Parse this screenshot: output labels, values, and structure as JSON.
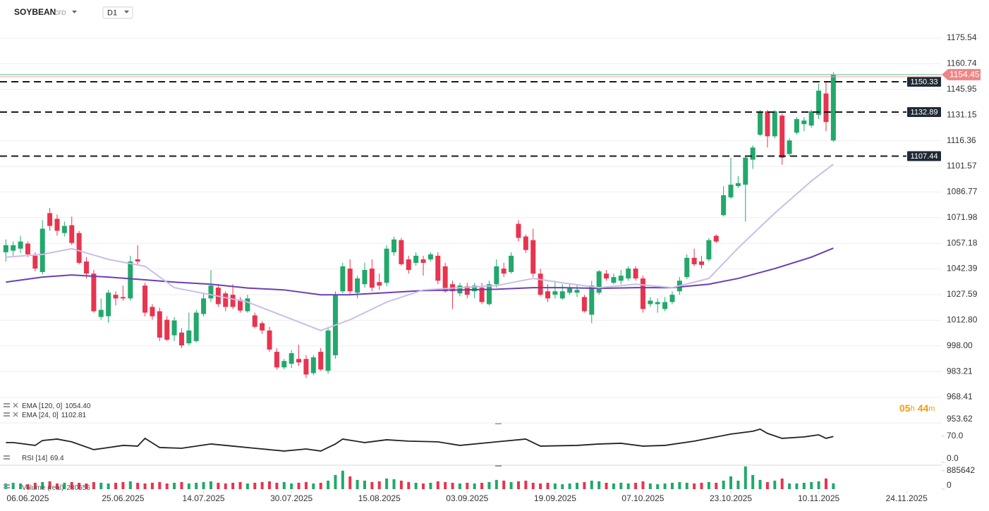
{
  "header": {
    "symbol": "SOYBEAN",
    "instrument_type": "CFD",
    "timeframe": "D1"
  },
  "countdown": {
    "hours": "05",
    "hours_unit": "h",
    "minutes": "44",
    "minutes_unit": "m"
  },
  "chart_data": [
    {
      "type": "candlestick",
      "up_color": "#22a86b",
      "down_color": "#e8344e",
      "grid": true,
      "xlim": [
        -0.8,
        127.8
      ],
      "xticks": [
        {
          "value": 3,
          "label": "06.06.2025"
        },
        {
          "value": 16,
          "label": "25.06.2025"
        },
        {
          "value": 27,
          "label": "14.07.2025"
        },
        {
          "value": 39,
          "label": "30.07.2025"
        },
        {
          "value": 51,
          "label": "15.08.2025"
        },
        {
          "value": 63,
          "label": "03.09.2025"
        },
        {
          "value": 75,
          "label": "19.09.2025"
        },
        {
          "value": 87,
          "label": "07.10.2025"
        },
        {
          "value": 99,
          "label": "23.10.2025"
        },
        {
          "value": 111,
          "label": "10.11.2025"
        },
        {
          "value": 123,
          "label": "24.11.2025"
        }
      ],
      "ylim": [
        953.6,
        1197.5
      ],
      "yticks": [
        1175.54,
        1160.74,
        1145.95,
        1131.15,
        1116.36,
        1101.57,
        1086.77,
        1071.98,
        1057.18,
        1042.39,
        1027.59,
        {
          "value": 1012.8,
          "label": "1012.80"
        },
        {
          "value": 998,
          "label": "998.00"
        },
        983.21,
        968.41,
        953.62
      ],
      "ohlc": [
        [
          1052.0,
          1059.4,
          1046.7,
          1056.1
        ],
        [
          1052.9,
          1058.2,
          1050.0,
          1056.1
        ],
        [
          1054.1,
          1061.5,
          1051.6,
          1058.2
        ],
        [
          1057.0,
          1058.2,
          1049.2,
          1050.8
        ],
        [
          1050.0,
          1052.0,
          1041.0,
          1042.6
        ],
        [
          1040.6,
          1070.5,
          1039.3,
          1065.6
        ],
        [
          1074.6,
          1077.5,
          1064.4,
          1067.2
        ],
        [
          1071.3,
          1073.8,
          1061.5,
          1064.4
        ],
        [
          1063.1,
          1069.7,
          1061.1,
          1067.2
        ],
        [
          1067.6,
          1072.6,
          1056.2,
          1057.4
        ],
        [
          1063.1,
          1064.4,
          1045.1,
          1045.9
        ],
        [
          1046.7,
          1049.2,
          1036.9,
          1039.7
        ],
        [
          1039.7,
          1041.8,
          1017.2,
          1018.0
        ],
        [
          1014.7,
          1025.4,
          1013.1,
          1018.8
        ],
        [
          1015.1,
          1030.3,
          1011.4,
          1028.7
        ],
        [
          1027.5,
          1029.5,
          1021.3,
          1025.4
        ],
        [
          1026.2,
          1032.8,
          1024.1,
          1025.4
        ],
        [
          1025.4,
          1050.0,
          1024.1,
          1046.7
        ],
        [
          1047.9,
          1056.1,
          1045.1,
          1046.7
        ],
        [
          1032.8,
          1034.4,
          1015.1,
          1017.2
        ],
        [
          1020.5,
          1022.1,
          1013.1,
          1015.1
        ],
        [
          1018.0,
          1020.1,
          1000.8,
          1002.8
        ],
        [
          1013.1,
          1015.1,
          1000.8,
          1001.6
        ],
        [
          1004.1,
          1014.7,
          1000.8,
          1012.7
        ],
        [
          1005.7,
          1008.2,
          996.7,
          998.3
        ],
        [
          999.5,
          1017.2,
          998.3,
          1006.9
        ],
        [
          1000.8,
          1018.8,
          1000.0,
          1017.2
        ],
        [
          1016.4,
          1027.9,
          1015.1,
          1025.4
        ],
        [
          1025.4,
          1041.8,
          1023.3,
          1032.8
        ],
        [
          1031.6,
          1033.6,
          1020.5,
          1022.1
        ],
        [
          1028.3,
          1029.5,
          1018.0,
          1020.5
        ],
        [
          1027.5,
          1033.6,
          1019.3,
          1020.5
        ],
        [
          1024.6,
          1026.2,
          1017.2,
          1018.4
        ],
        [
          1018.0,
          1027.5,
          1017.2,
          1025.4
        ],
        [
          1015.6,
          1017.2,
          1008.2,
          1009.0
        ],
        [
          1011.1,
          1012.3,
          1004.9,
          1006.9
        ],
        [
          1006.9,
          1009.0,
          994.6,
          995.9
        ],
        [
          994.6,
          996.7,
          984.4,
          985.6
        ],
        [
          985.6,
          990.5,
          984.4,
          989.3
        ],
        [
          987.7,
          995.5,
          985.2,
          993.8
        ],
        [
          990.5,
          998.7,
          986.5,
          988.5
        ],
        [
          990.5,
          992.6,
          979.5,
          981.5
        ],
        [
          982.3,
          992.6,
          981.1,
          991.4
        ],
        [
          994.6,
          996.7,
          983.6,
          984.4
        ],
        [
          983.6,
          1009.0,
          981.9,
          1006.9
        ],
        [
          992.6,
          1029.5,
          990.5,
          1027.5
        ],
        [
          1029.5,
          1045.9,
          1028.3,
          1043.9
        ],
        [
          1042.6,
          1047.9,
          1027.5,
          1029.5
        ],
        [
          1028.7,
          1038.5,
          1025.4,
          1036.9
        ],
        [
          1033.6,
          1045.9,
          1031.6,
          1041.8
        ],
        [
          1042.6,
          1047.9,
          1029.5,
          1031.6
        ],
        [
          1034.8,
          1039.7,
          1030.3,
          1032.8
        ],
        [
          1034.4,
          1056.1,
          1032.4,
          1054.1
        ],
        [
          1052.0,
          1061.1,
          1050.0,
          1059.4
        ],
        [
          1059.0,
          1060.3,
          1044.3,
          1045.1
        ],
        [
          1047.9,
          1050.0,
          1039.7,
          1041.8
        ],
        [
          1045.9,
          1052.0,
          1044.3,
          1050.0
        ],
        [
          1047.9,
          1050.0,
          1038.5,
          1045.9
        ],
        [
          1047.9,
          1052.0,
          1046.7,
          1050.8
        ],
        [
          1050.0,
          1052.0,
          1033.6,
          1035.6
        ],
        [
          1043.9,
          1045.9,
          1028.7,
          1029.5
        ],
        [
          1033.6,
          1035.6,
          1019.3,
          1029.5
        ],
        [
          1028.3,
          1034.4,
          1026.6,
          1032.8
        ],
        [
          1032.4,
          1034.4,
          1025.4,
          1027.5
        ],
        [
          1029.5,
          1034.4,
          1025.4,
          1032.8
        ],
        [
          1031.6,
          1034.4,
          1022.1,
          1023.3
        ],
        [
          1022.1,
          1035.6,
          1021.3,
          1033.6
        ],
        [
          1033.6,
          1047.9,
          1031.6,
          1043.9
        ],
        [
          1042.6,
          1045.9,
          1037.7,
          1039.7
        ],
        [
          1040.6,
          1052.0,
          1039.7,
          1050.0
        ],
        [
          1068.4,
          1070.5,
          1058.2,
          1060.3
        ],
        [
          1061.1,
          1062.3,
          1051.6,
          1053.3
        ],
        [
          1059.0,
          1065.6,
          1037.7,
          1039.7
        ],
        [
          1039.7,
          1042.6,
          1026.6,
          1027.5
        ],
        [
          1029.5,
          1033.6,
          1023.3,
          1025.4
        ],
        [
          1027.5,
          1035.6,
          1025.4,
          1029.5
        ],
        [
          1025.4,
          1033.6,
          1024.6,
          1029.5
        ],
        [
          1028.7,
          1033.6,
          1027.5,
          1031.6
        ],
        [
          1028.7,
          1033.6,
          1026.2,
          1030.3
        ],
        [
          1026.2,
          1027.5,
          1017.2,
          1018.0
        ],
        [
          1016.0,
          1035.6,
          1011.1,
          1032.8
        ],
        [
          1028.7,
          1041.8,
          1027.5,
          1041.0
        ],
        [
          1039.7,
          1041.8,
          1035.6,
          1036.9
        ],
        [
          1034.4,
          1039.7,
          1033.6,
          1037.7
        ],
        [
          1035.6,
          1041.8,
          1033.6,
          1038.5
        ],
        [
          1036.9,
          1043.9,
          1035.6,
          1042.6
        ],
        [
          1042.6,
          1043.9,
          1035.6,
          1036.9
        ],
        [
          1036.9,
          1038.5,
          1017.2,
          1019.3
        ],
        [
          1022.1,
          1026.2,
          1020.5,
          1024.1
        ],
        [
          1022.1,
          1025.4,
          1017.2,
          1023.3
        ],
        [
          1019.3,
          1026.2,
          1018.0,
          1023.3
        ],
        [
          1023.3,
          1029.5,
          1022.1,
          1027.5
        ],
        [
          1029.5,
          1037.7,
          1027.5,
          1035.6
        ],
        [
          1037.7,
          1050.8,
          1036.5,
          1048.8
        ],
        [
          1048.8,
          1054.1,
          1043.9,
          1045.1
        ],
        [
          1046.7,
          1050.0,
          1042.6,
          1044.7
        ],
        [
          1047.9,
          1060.3,
          1046.7,
          1059.0
        ],
        [
          1061.5,
          1062.3,
          1057.4,
          1058.2
        ],
        [
          1073.4,
          1090.2,
          1072.6,
          1084.9
        ],
        [
          1083.7,
          1106.6,
          1082.8,
          1091.0
        ],
        [
          1090.2,
          1096.0,
          1089.0,
          1091.9
        ],
        [
          1091.0,
          1107.5,
          1069.7,
          1106.6
        ],
        [
          1105.4,
          1113.6,
          1100.1,
          1112.4
        ],
        [
          1119.8,
          1134.1,
          1118.9,
          1133.3
        ],
        [
          1133.3,
          1134.1,
          1112.4,
          1118.9
        ],
        [
          1118.9,
          1134.1,
          1117.7,
          1133.3
        ],
        [
          1130.8,
          1132.1,
          1102.5,
          1106.6
        ],
        [
          1108.7,
          1117.7,
          1107.5,
          1116.5
        ],
        [
          1121.0,
          1130.0,
          1119.8,
          1128.8
        ],
        [
          1125.9,
          1130.0,
          1121.8,
          1128.0
        ],
        [
          1125.1,
          1134.1,
          1123.9,
          1133.3
        ],
        [
          1131.3,
          1149.3,
          1128.8,
          1145.2
        ],
        [
          1143.6,
          1150.5,
          1121.8,
          1127.1
        ],
        [
          1116.5,
          1155.9,
          1115.7,
          1154.45
        ]
      ],
      "series": [
        {
          "name": "EMA [120, 0]",
          "legend_value": "1054.40",
          "color": "#6a3fb5",
          "x": [
            0,
            5,
            9,
            14,
            19,
            23,
            28,
            33,
            38,
            43,
            47,
            52,
            57,
            62,
            67,
            72,
            76,
            81,
            86,
            91,
            96,
            100,
            105,
            110,
            113
          ],
          "values": [
            1034.8,
            1037.7,
            1038.9,
            1037.7,
            1036.1,
            1034.8,
            1033.6,
            1031.4,
            1030.3,
            1027.5,
            1027.5,
            1028.7,
            1029.9,
            1030.3,
            1030.7,
            1031.6,
            1031.6,
            1031.2,
            1031.6,
            1031.6,
            1033.6,
            1036.9,
            1042.6,
            1049.2,
            1054.4
          ]
        },
        {
          "name": "EMA [24, 0]",
          "legend_value": "1102.81",
          "color": "#cbbde6",
          "x": [
            0,
            5,
            9,
            14,
            19,
            23,
            28,
            33,
            38,
            43,
            47,
            52,
            57,
            62,
            67,
            72,
            76,
            81,
            86,
            91,
            96,
            100,
            105,
            110,
            113
          ],
          "values": [
            1049.2,
            1050.8,
            1054.1,
            1047.9,
            1043.9,
            1031.6,
            1027.5,
            1023.3,
            1015.1,
            1006.9,
            1013.1,
            1023.3,
            1030.3,
            1031.6,
            1032.8,
            1036.9,
            1034.4,
            1031.6,
            1033.6,
            1031.6,
            1036.9,
            1054.5,
            1074.6,
            1093.1,
            1102.81
          ]
        }
      ],
      "levels": [
        1150.33,
        1132.89,
        1107.44
      ],
      "last_price": 1154.45
    },
    {
      "type": "line",
      "name": "RSI [14]",
      "legend_value": "69.4",
      "color": "#222222",
      "grid": false,
      "ylim": [
        0,
        100
      ],
      "yticks": [
        {
          "value": 70,
          "label": "70.0"
        },
        {
          "value": 0,
          "label": "0.0"
        }
      ],
      "x": [
        0,
        1,
        4,
        5,
        7,
        9,
        12,
        14,
        16,
        18,
        19,
        21,
        24,
        28,
        31,
        34,
        38,
        41,
        43,
        45,
        46,
        49,
        52,
        55,
        59,
        62,
        67,
        71,
        73,
        78,
        81,
        84,
        87,
        90,
        94,
        96,
        99,
        102,
        103,
        104,
        106,
        109,
        111,
        112,
        113
      ],
      "values": [
        53.0,
        53.0,
        45.4,
        58.6,
        62.4,
        54.9,
        34.1,
        39.7,
        45.4,
        43.5,
        64.3,
        39.7,
        37.8,
        49.2,
        43.5,
        37.8,
        30.3,
        35.9,
        30.3,
        49.2,
        62.4,
        53.0,
        60.5,
        56.8,
        54.9,
        45.4,
        54.9,
        62.4,
        43.5,
        45.4,
        49.2,
        51.1,
        43.5,
        45.4,
        56.8,
        64.3,
        75.7,
        83.2,
        88.9,
        77.6,
        64.3,
        68.1,
        73.8,
        64.3,
        69.4
      ]
    },
    {
      "type": "bar",
      "name": "Volume (real)",
      "grid": false,
      "ylim": [
        0,
        1150000
      ],
      "yticks": [
        885642,
        0
      ],
      "values": [
        272504,
        306567,
        272504,
        238441,
        306567,
        340630,
        374693,
        272504,
        306567,
        340630,
        306567,
        272504,
        340630,
        306567,
        272504,
        306567,
        340630,
        374693,
        306567,
        272504,
        306567,
        340630,
        272504,
        306567,
        340630,
        272504,
        306567,
        340630,
        374693,
        306567,
        272504,
        306567,
        340630,
        272504,
        306567,
        340630,
        374693,
        306567,
        340630,
        272504,
        306567,
        340630,
        272504,
        306567,
        408756,
        681260,
        885638,
        613134,
        442819,
        408756,
        340630,
        374693,
        510945,
        476882,
        408756,
        340630,
        306567,
        272504,
        306567,
        374693,
        340630,
        306567,
        272504,
        306567,
        272504,
        306567,
        340630,
        442819,
        408756,
        340630,
        374693,
        408756,
        306567,
        272504,
        306567,
        272504,
        238441,
        272504,
        306567,
        340630,
        408756,
        374693,
        306567,
        272504,
        306567,
        272504,
        306567,
        374693,
        272504,
        238441,
        272504,
        306567,
        340630,
        306567,
        272504,
        306567,
        340630,
        306567,
        408756,
        613134,
        408756,
        1090016,
        681260,
        442819,
        340630,
        408756,
        510945,
        272504,
        272504,
        306567,
        340630,
        374693,
        510945,
        280556
      ]
    }
  ]
}
